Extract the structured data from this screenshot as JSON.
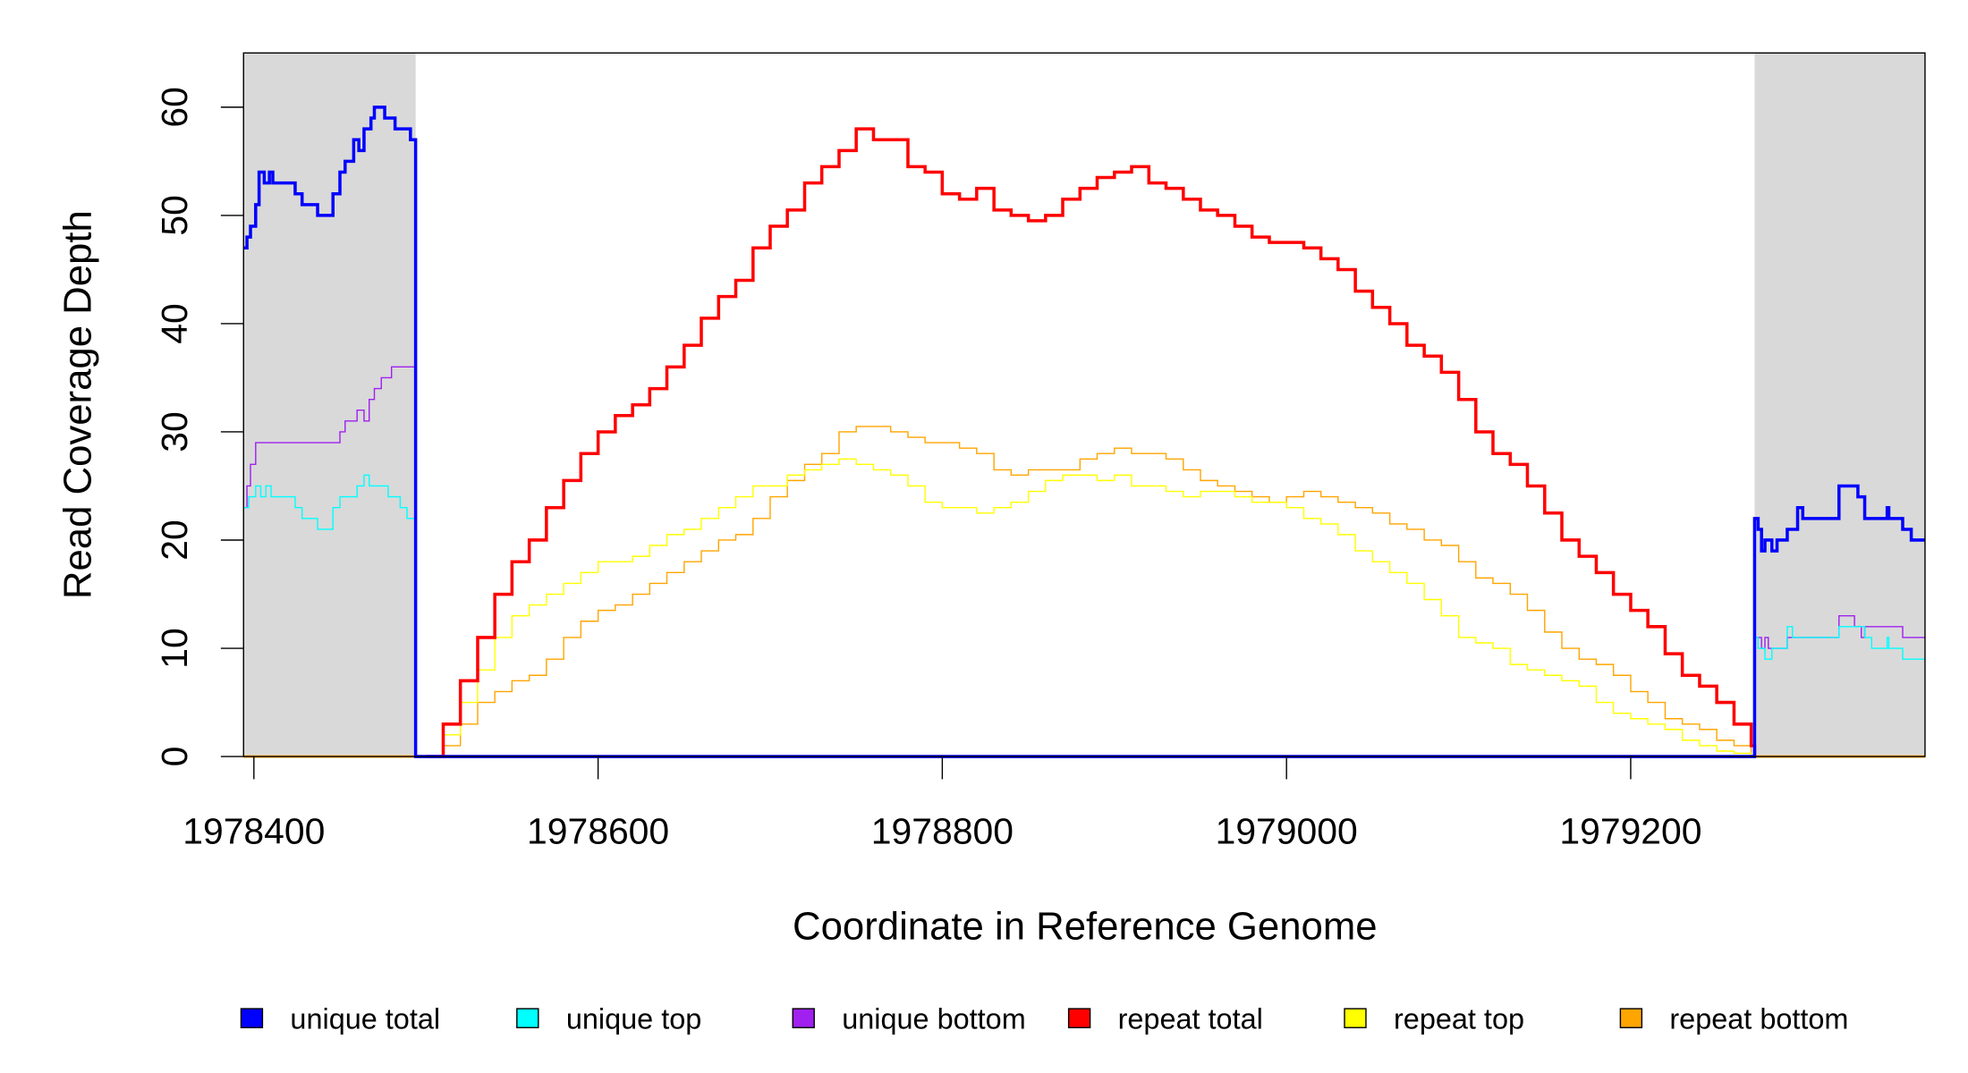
{
  "chart_data": {
    "type": "line",
    "title": "",
    "xlabel": "Coordinate in Reference Genome",
    "ylabel": "Read Coverage Depth",
    "xlim": [
      1978394,
      1979371
    ],
    "ylim": [
      0,
      65
    ],
    "x_ticks": [
      1978400,
      1978600,
      1978800,
      1979000,
      1979200
    ],
    "x_tick_labels": [
      "1978400",
      "1978600",
      "1978800",
      "1979000",
      "1979200"
    ],
    "y_ticks": [
      0,
      10,
      20,
      30,
      40,
      50,
      60
    ],
    "y_tick_labels": [
      "0",
      "10",
      "20",
      "30",
      "40",
      "50",
      "60"
    ],
    "grid": false,
    "legend_placement": "bottom",
    "shaded_regions": [
      [
        1978394,
        1978494
      ],
      [
        1979272,
        1979371
      ]
    ],
    "shade_color": "#d9d9d9",
    "legend": [
      {
        "label": "unique total",
        "color": "#0000ff"
      },
      {
        "label": "unique top",
        "color": "#00ffff"
      },
      {
        "label": "unique bottom",
        "color": "#a020f0"
      },
      {
        "label": "repeat total",
        "color": "#ff0000"
      },
      {
        "label": "repeat top",
        "color": "#ffff00"
      },
      {
        "label": "repeat bottom",
        "color": "#ffa500"
      }
    ],
    "unique_series": [
      {
        "name": "unique total",
        "color": "#0000ff",
        "points": [
          [
            1978394,
            47
          ],
          [
            1978396,
            48
          ],
          [
            1978398,
            49
          ],
          [
            1978401,
            51
          ],
          [
            1978403,
            54
          ],
          [
            1978406,
            53
          ],
          [
            1978409,
            54
          ],
          [
            1978411,
            53
          ],
          [
            1978424,
            52
          ],
          [
            1978428,
            51
          ],
          [
            1978437,
            50
          ],
          [
            1978446,
            52
          ],
          [
            1978450,
            54
          ],
          [
            1978453,
            55
          ],
          [
            1978458,
            57
          ],
          [
            1978461,
            56
          ],
          [
            1978464,
            58
          ],
          [
            1978468,
            59
          ],
          [
            1978470,
            60
          ],
          [
            1978476,
            59
          ],
          [
            1978482,
            58
          ],
          [
            1978491,
            57
          ],
          [
            1978494,
            0
          ],
          [
            1979272,
            0
          ],
          [
            1979272,
            22
          ],
          [
            1979274,
            21
          ],
          [
            1979276,
            19
          ],
          [
            1979278,
            20
          ],
          [
            1979282,
            19
          ],
          [
            1979285,
            20
          ],
          [
            1979291,
            21
          ],
          [
            1979297,
            23
          ],
          [
            1979300,
            22
          ],
          [
            1979321,
            25
          ],
          [
            1979332,
            24
          ],
          [
            1979336,
            22
          ],
          [
            1979349,
            23
          ],
          [
            1979350,
            22
          ],
          [
            1979358,
            21
          ],
          [
            1979363,
            20
          ],
          [
            1979371,
            20
          ]
        ]
      },
      {
        "name": "unique top",
        "color": "#00ffff",
        "points": [
          [
            1978394,
            23
          ],
          [
            1978397,
            24
          ],
          [
            1978401,
            25
          ],
          [
            1978404,
            24
          ],
          [
            1978407,
            25
          ],
          [
            1978410,
            24
          ],
          [
            1978424,
            23
          ],
          [
            1978428,
            22
          ],
          [
            1978437,
            21
          ],
          [
            1978446,
            23
          ],
          [
            1978450,
            24
          ],
          [
            1978460,
            25
          ],
          [
            1978464,
            26
          ],
          [
            1978467,
            25
          ],
          [
            1978478,
            24
          ],
          [
            1978485,
            23
          ],
          [
            1978489,
            22
          ],
          [
            1978494,
            0
          ],
          [
            1979272,
            0
          ],
          [
            1979272,
            11
          ],
          [
            1979274,
            10
          ],
          [
            1979278,
            9
          ],
          [
            1979282,
            10
          ],
          [
            1979291,
            12
          ],
          [
            1979294,
            11
          ],
          [
            1979321,
            12
          ],
          [
            1979336,
            11
          ],
          [
            1979340,
            10
          ],
          [
            1979349,
            11
          ],
          [
            1979350,
            10
          ],
          [
            1979358,
            9
          ],
          [
            1979371,
            9
          ]
        ]
      },
      {
        "name": "unique bottom",
        "color": "#a020f0",
        "points": [
          [
            1978394,
            23
          ],
          [
            1978396,
            25
          ],
          [
            1978398,
            27
          ],
          [
            1978401,
            29
          ],
          [
            1978450,
            30
          ],
          [
            1978453,
            31
          ],
          [
            1978460,
            32
          ],
          [
            1978464,
            31
          ],
          [
            1978467,
            33
          ],
          [
            1978470,
            34
          ],
          [
            1978474,
            35
          ],
          [
            1978480,
            36
          ],
          [
            1978494,
            0
          ],
          [
            1979272,
            0
          ],
          [
            1979272,
            11
          ],
          [
            1979276,
            10
          ],
          [
            1979278,
            11
          ],
          [
            1979280,
            10
          ],
          [
            1979291,
            11
          ],
          [
            1979321,
            13
          ],
          [
            1979330,
            12
          ],
          [
            1979334,
            11
          ],
          [
            1979336,
            12
          ],
          [
            1979358,
            11
          ],
          [
            1979371,
            11
          ]
        ]
      }
    ],
    "repeat_x_start": 1978500,
    "repeat_x_step": 10,
    "repeat_series": [
      {
        "name": "repeat bottom",
        "color": "#ffa500",
        "values": [
          0,
          1,
          3,
          5,
          6,
          7,
          7.5,
          9,
          11,
          12.5,
          13.5,
          14,
          15,
          16,
          17,
          18,
          19,
          20,
          20.5,
          22,
          24,
          25.5,
          27,
          28,
          30,
          30.5,
          30.5,
          30,
          29.5,
          29,
          29,
          28.5,
          28,
          26.5,
          26,
          26.5,
          26.5,
          26.5,
          27.5,
          28,
          28.5,
          28,
          28,
          27.5,
          26.5,
          25.5,
          25,
          24.5,
          24,
          23.5,
          24,
          24.5,
          24,
          23.5,
          23,
          22.5,
          21.5,
          21,
          20,
          19.5,
          18,
          16.5,
          16,
          15,
          13.5,
          11.5,
          10,
          9,
          8.5,
          7.5,
          6,
          5,
          3.5,
          3,
          2.5,
          1.5,
          1,
          0
        ]
      },
      {
        "name": "repeat top",
        "color": "#ffff00",
        "values": [
          0,
          2,
          5,
          8,
          11,
          13,
          14,
          15,
          16,
          17,
          18,
          18,
          18.5,
          19.5,
          20.5,
          21,
          22,
          23,
          24,
          25,
          25,
          26,
          26.5,
          27,
          27.5,
          27,
          26.5,
          26,
          25,
          23.5,
          23,
          23,
          22.5,
          23,
          23.5,
          24.5,
          25.5,
          26,
          26,
          25.5,
          26,
          25,
          25,
          24.5,
          24,
          24.5,
          24.5,
          24,
          23.5,
          23.5,
          23,
          22,
          21.5,
          20.5,
          19,
          18,
          17,
          16,
          14.5,
          13,
          11,
          10.5,
          10,
          8.5,
          8,
          7.5,
          7,
          6.5,
          5,
          4,
          3.5,
          3,
          2.5,
          1.5,
          1,
          0.5,
          0.3,
          0
        ]
      },
      {
        "name": "repeat total",
        "color": "#ff0000",
        "values": [
          0,
          3,
          7,
          11,
          15,
          18,
          20,
          23,
          25.5,
          28,
          30,
          31.5,
          32.5,
          34,
          36,
          38,
          40.5,
          42.5,
          44,
          47,
          49,
          50.5,
          53,
          54.5,
          56,
          58,
          57,
          57,
          54.5,
          54,
          52,
          51.5,
          52.5,
          50.5,
          50,
          49.5,
          50,
          51.5,
          52.5,
          53.5,
          54,
          54.5,
          53,
          52.5,
          51.5,
          50.5,
          50,
          49,
          48,
          47.5,
          47.5,
          47,
          46,
          45,
          43,
          41.5,
          40,
          38,
          37,
          35.5,
          33,
          30,
          28,
          27,
          25,
          22.5,
          20,
          18.5,
          17,
          15,
          13.5,
          12,
          9.5,
          7.5,
          6.5,
          5,
          3,
          1
        ]
      }
    ]
  }
}
